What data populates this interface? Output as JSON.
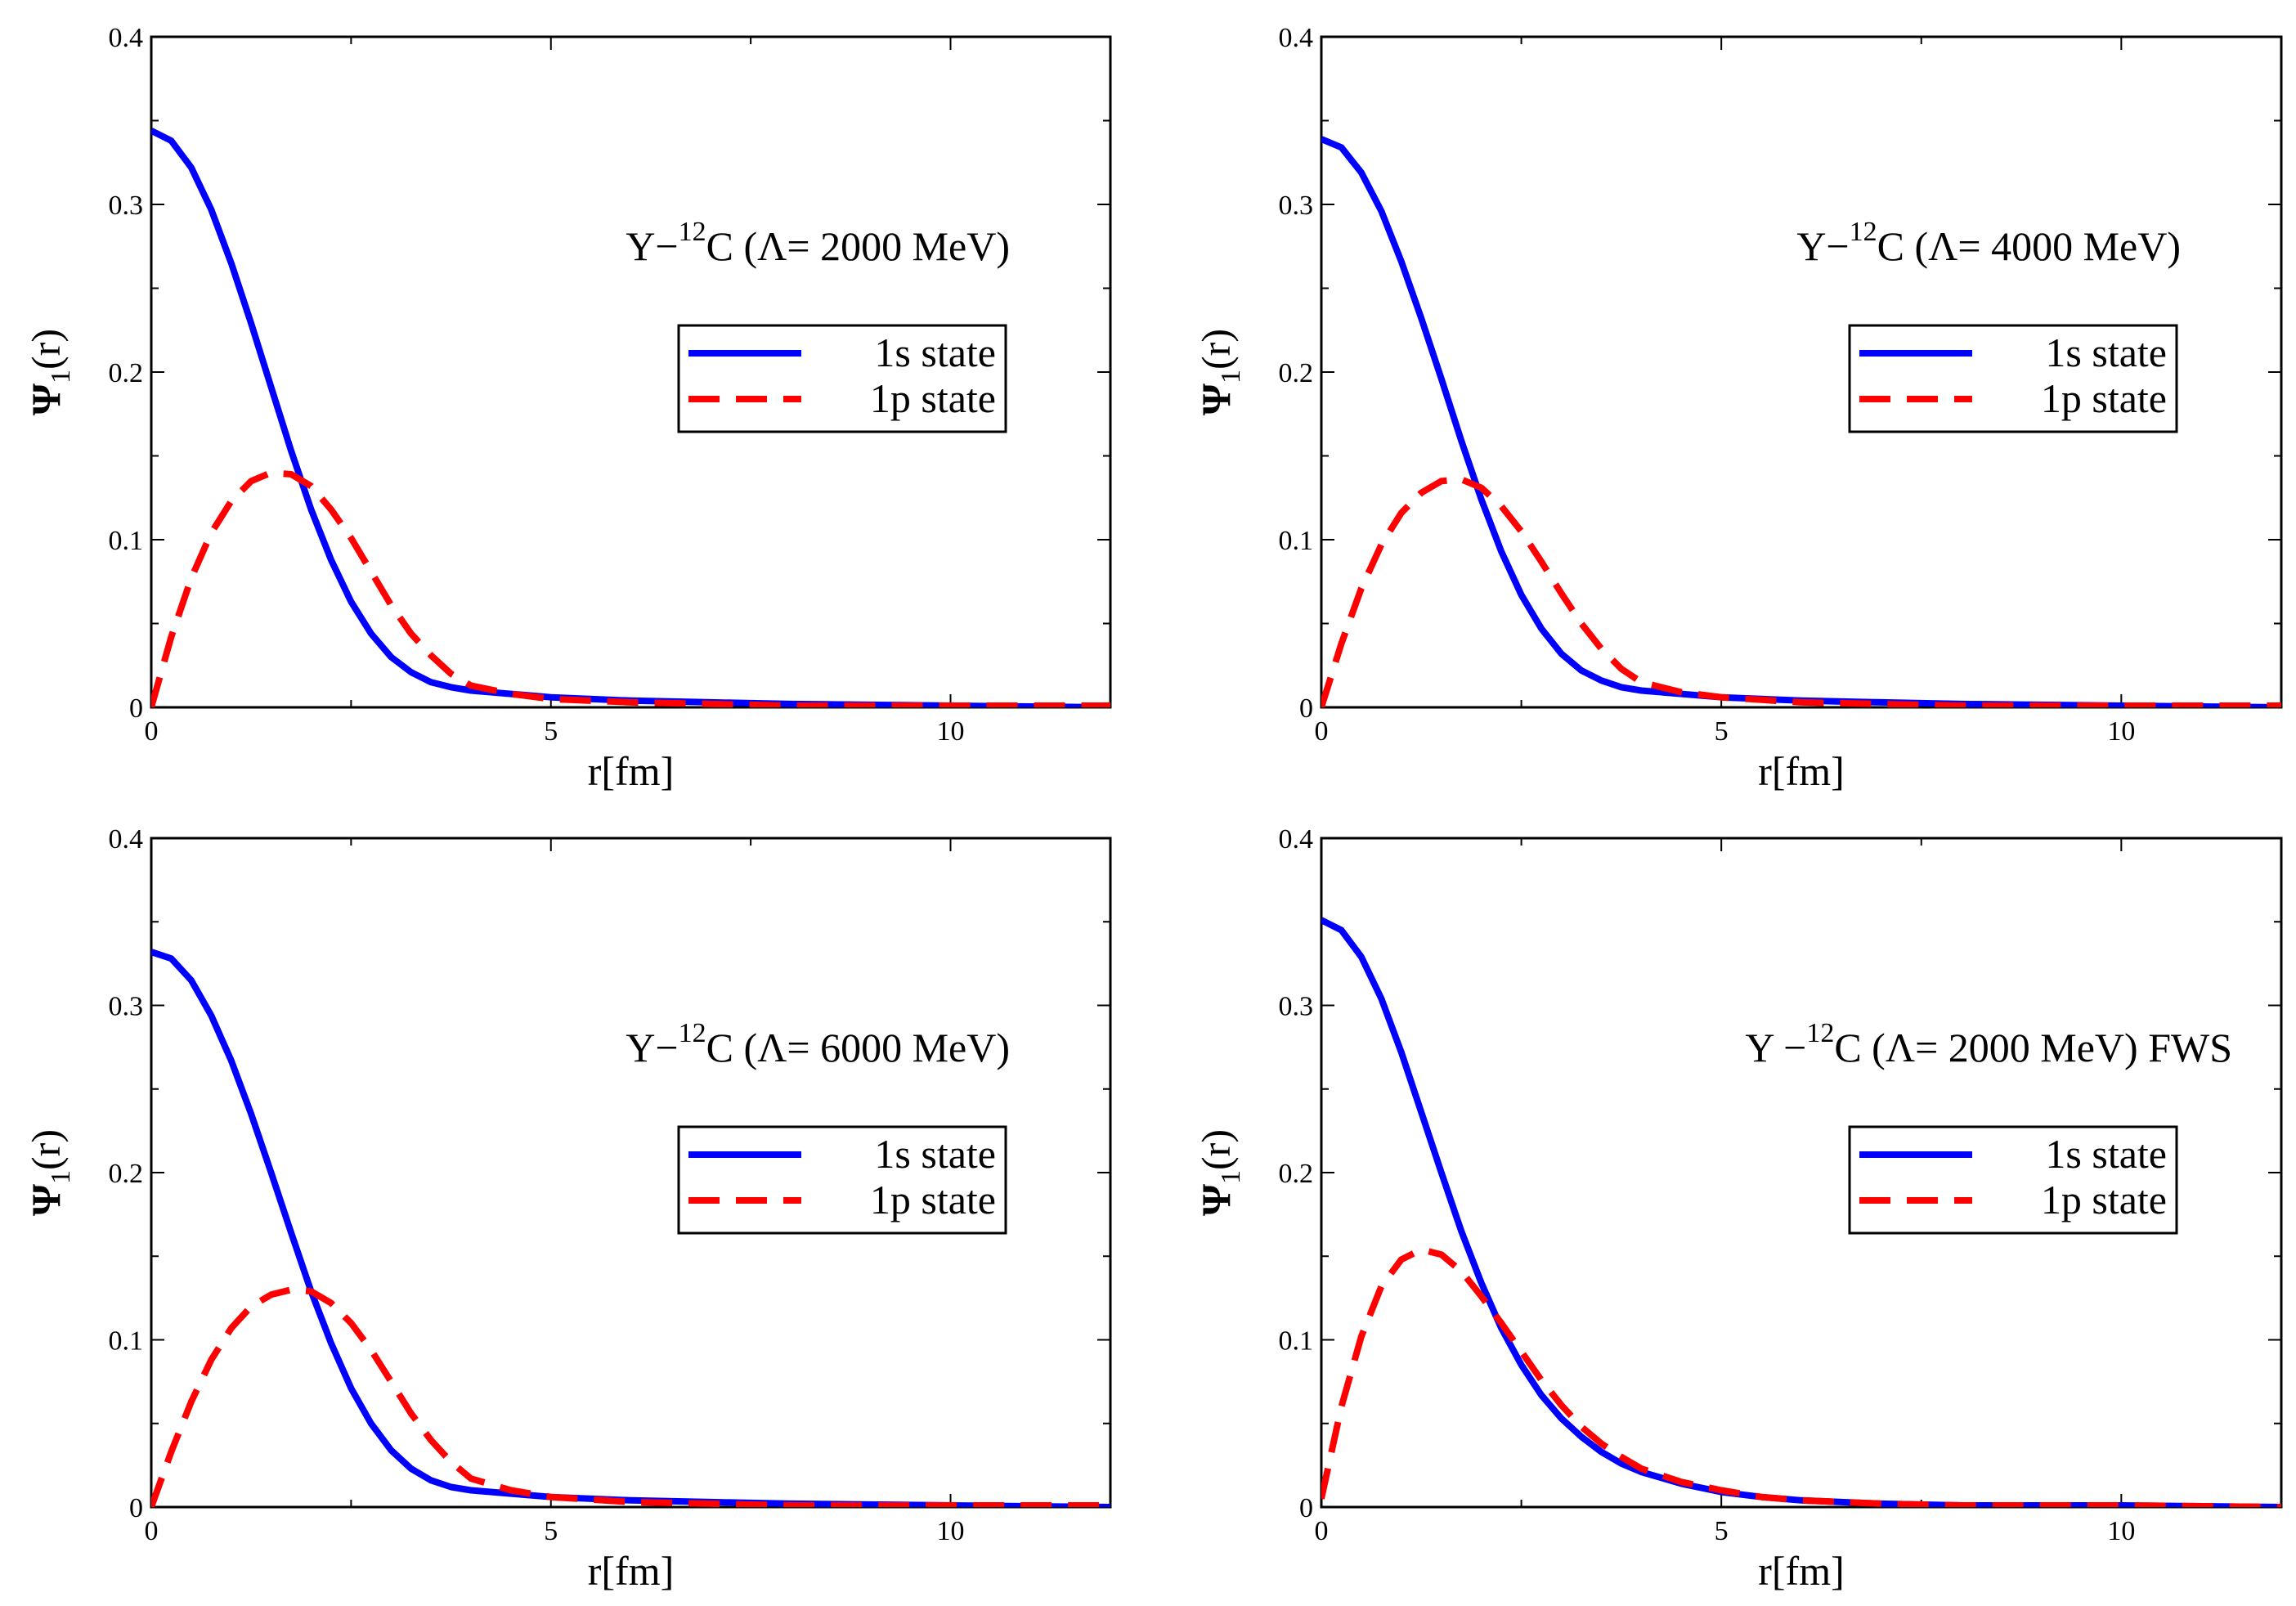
{
  "chart_data": [
    {
      "type": "line",
      "annotation": {
        "pre": "Y−",
        "sup": "12",
        "post": "C (Λ= 2000 MeV)"
      },
      "xlabel": "r[fm]",
      "ylabel": {
        "main": "Ψ",
        "sub": "1",
        "post": "(r)"
      },
      "xlim": [
        0,
        12
      ],
      "ylim": [
        0,
        0.4
      ],
      "xticks": [
        "0",
        "5",
        "10"
      ],
      "yticks": [
        "0",
        "0.1",
        "0.2",
        "0.3",
        "0.4"
      ],
      "legend_position": "upper-right",
      "series": [
        {
          "name": "1s state",
          "color": "#0000ff",
          "style": "solid",
          "x": [
            0,
            0.25,
            0.5,
            0.75,
            1.0,
            1.25,
            1.5,
            1.75,
            2.0,
            2.25,
            2.5,
            2.75,
            3.0,
            3.25,
            3.5,
            3.75,
            4.0,
            4.5,
            5.0,
            6.0,
            7.0,
            8.0,
            10.0,
            12.0
          ],
          "y": [
            0.344,
            0.338,
            0.322,
            0.297,
            0.265,
            0.229,
            0.191,
            0.153,
            0.118,
            0.088,
            0.063,
            0.044,
            0.03,
            0.021,
            0.015,
            0.012,
            0.01,
            0.008,
            0.006,
            0.004,
            0.003,
            0.002,
            0.001,
            0.0
          ]
        },
        {
          "name": "1p state",
          "color": "#ff0000",
          "style": "dashed",
          "x": [
            0,
            0.25,
            0.5,
            0.75,
            1.0,
            1.25,
            1.5,
            1.75,
            2.0,
            2.25,
            2.5,
            2.75,
            3.0,
            3.25,
            3.5,
            3.75,
            4.0,
            4.5,
            5.0,
            6.0,
            7.0,
            8.0,
            10.0,
            12.0
          ],
          "y": [
            0.0,
            0.042,
            0.077,
            0.104,
            0.123,
            0.135,
            0.14,
            0.139,
            0.132,
            0.118,
            0.101,
            0.081,
            0.061,
            0.044,
            0.031,
            0.02,
            0.013,
            0.008,
            0.005,
            0.003,
            0.002,
            0.001,
            0.001,
            0.001
          ]
        }
      ]
    },
    {
      "type": "line",
      "annotation": {
        "pre": "Y−",
        "sup": "12",
        "post": "C (Λ= 4000 MeV)"
      },
      "xlabel": "r[fm]",
      "ylabel": {
        "main": "Ψ",
        "sub": "1",
        "post": "(r)"
      },
      "xlim": [
        0,
        12
      ],
      "ylim": [
        0,
        0.4
      ],
      "xticks": [
        "0",
        "5",
        "10"
      ],
      "yticks": [
        "0",
        "0.1",
        "0.2",
        "0.3",
        "0.4"
      ],
      "legend_position": "upper-right",
      "series": [
        {
          "name": "1s state",
          "color": "#0000ff",
          "style": "solid",
          "x": [
            0,
            0.25,
            0.5,
            0.75,
            1.0,
            1.25,
            1.5,
            1.75,
            2.0,
            2.25,
            2.5,
            2.75,
            3.0,
            3.25,
            3.5,
            3.75,
            4.0,
            4.5,
            5.0,
            6.0,
            7.0,
            8.0,
            10.0,
            12.0
          ],
          "y": [
            0.339,
            0.334,
            0.319,
            0.296,
            0.266,
            0.232,
            0.196,
            0.159,
            0.124,
            0.093,
            0.067,
            0.047,
            0.032,
            0.022,
            0.016,
            0.012,
            0.01,
            0.008,
            0.006,
            0.004,
            0.003,
            0.002,
            0.001,
            0.0
          ]
        },
        {
          "name": "1p state",
          "color": "#ff0000",
          "style": "dashed",
          "x": [
            0,
            0.25,
            0.5,
            0.75,
            1.0,
            1.25,
            1.5,
            1.75,
            2.0,
            2.25,
            2.5,
            2.75,
            3.0,
            3.25,
            3.5,
            3.75,
            4.0,
            4.5,
            5.0,
            6.0,
            7.0,
            8.0,
            10.0,
            12.0
          ],
          "y": [
            0.0,
            0.038,
            0.071,
            0.097,
            0.116,
            0.128,
            0.135,
            0.136,
            0.131,
            0.12,
            0.105,
            0.087,
            0.068,
            0.05,
            0.035,
            0.023,
            0.015,
            0.009,
            0.006,
            0.003,
            0.002,
            0.001,
            0.001,
            0.001
          ]
        }
      ]
    },
    {
      "type": "line",
      "annotation": {
        "pre": "Y−",
        "sup": "12",
        "post": "C (Λ= 6000 MeV)"
      },
      "xlabel": "r[fm]",
      "ylabel": {
        "main": "Ψ",
        "sub": "1",
        "post": "(r)"
      },
      "xlim": [
        0,
        12
      ],
      "ylim": [
        0,
        0.4
      ],
      "xticks": [
        "0",
        "5",
        "10"
      ],
      "yticks": [
        "0",
        "0.1",
        "0.2",
        "0.3",
        "0.4"
      ],
      "legend_position": "upper-right",
      "series": [
        {
          "name": "1s state",
          "color": "#0000ff",
          "style": "solid",
          "x": [
            0,
            0.25,
            0.5,
            0.75,
            1.0,
            1.25,
            1.5,
            1.75,
            2.0,
            2.25,
            2.5,
            2.75,
            3.0,
            3.25,
            3.5,
            3.75,
            4.0,
            4.5,
            5.0,
            6.0,
            7.0,
            8.0,
            10.0,
            12.0
          ],
          "y": [
            0.332,
            0.328,
            0.315,
            0.294,
            0.267,
            0.235,
            0.2,
            0.164,
            0.129,
            0.098,
            0.071,
            0.05,
            0.034,
            0.023,
            0.016,
            0.012,
            0.01,
            0.008,
            0.006,
            0.004,
            0.003,
            0.002,
            0.001,
            0.0
          ]
        },
        {
          "name": "1p state",
          "color": "#ff0000",
          "style": "dashed",
          "x": [
            0,
            0.25,
            0.5,
            0.75,
            1.0,
            1.25,
            1.5,
            1.75,
            2.0,
            2.25,
            2.5,
            2.75,
            3.0,
            3.25,
            3.5,
            3.75,
            4.0,
            4.5,
            5.0,
            6.0,
            7.0,
            8.0,
            10.0,
            12.0
          ],
          "y": [
            0.0,
            0.033,
            0.063,
            0.088,
            0.107,
            0.12,
            0.127,
            0.13,
            0.129,
            0.122,
            0.11,
            0.094,
            0.075,
            0.056,
            0.04,
            0.027,
            0.017,
            0.01,
            0.006,
            0.003,
            0.002,
            0.001,
            0.001,
            0.001
          ]
        }
      ]
    },
    {
      "type": "line",
      "annotation": {
        "pre": "Y −",
        "sup": "12",
        "post": "C (Λ= 2000 MeV) FWS"
      },
      "xlabel": "r[fm]",
      "ylabel": {
        "main": "Ψ",
        "sub": "1",
        "post": "(r)"
      },
      "xlim": [
        0,
        12
      ],
      "ylim": [
        0,
        0.4
      ],
      "xticks": [
        "0",
        "5",
        "10"
      ],
      "yticks": [
        "0",
        "0.1",
        "0.2",
        "0.3",
        "0.4"
      ],
      "legend_position": "upper-right",
      "series": [
        {
          "name": "1s state",
          "color": "#0000ff",
          "style": "solid",
          "x": [
            0,
            0.25,
            0.5,
            0.75,
            1.0,
            1.25,
            1.5,
            1.75,
            2.0,
            2.25,
            2.5,
            2.75,
            3.0,
            3.25,
            3.5,
            3.75,
            4.0,
            4.5,
            5.0,
            5.5,
            6.0,
            7.0,
            8.0,
            10.0,
            12.0
          ],
          "y": [
            0.351,
            0.345,
            0.329,
            0.304,
            0.272,
            0.236,
            0.2,
            0.165,
            0.134,
            0.107,
            0.085,
            0.067,
            0.053,
            0.042,
            0.033,
            0.026,
            0.021,
            0.014,
            0.009,
            0.006,
            0.004,
            0.002,
            0.001,
            0.001,
            0.0
          ]
        },
        {
          "name": "1p state",
          "color": "#ff0000",
          "style": "dashed",
          "x": [
            0,
            0.25,
            0.5,
            0.75,
            1.0,
            1.25,
            1.5,
            1.75,
            2.0,
            2.25,
            2.5,
            2.75,
            3.0,
            3.25,
            3.5,
            3.75,
            4.0,
            4.5,
            5.0,
            5.5,
            6.0,
            7.0,
            8.0,
            10.0,
            12.0
          ],
          "y": [
            0.005,
            0.06,
            0.102,
            0.132,
            0.148,
            0.154,
            0.151,
            0.141,
            0.126,
            0.11,
            0.093,
            0.076,
            0.061,
            0.048,
            0.038,
            0.03,
            0.023,
            0.015,
            0.01,
            0.006,
            0.004,
            0.002,
            0.001,
            0.001,
            0.0
          ]
        }
      ]
    }
  ]
}
